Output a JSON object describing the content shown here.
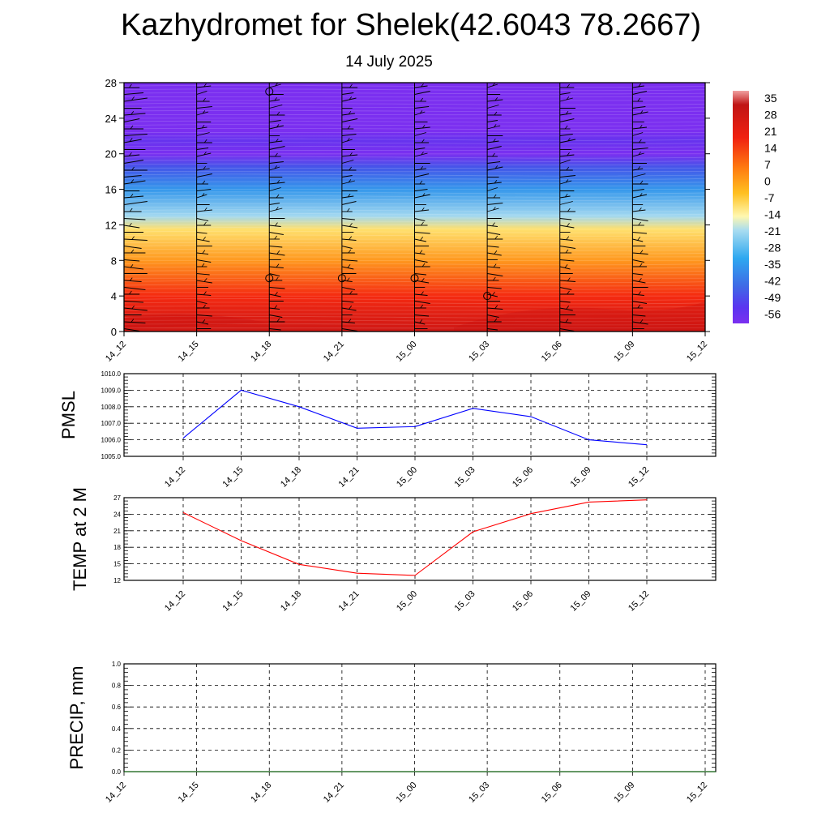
{
  "header": {
    "title": "Kazhydromet for Shelek(42.6043 78.2667)",
    "subtitle": "14 July 2025"
  },
  "colors": {
    "pmsl_line": "#0000ff",
    "temp_line": "#ff0000",
    "precip_line": "#006400"
  },
  "chart_data": [
    {
      "type": "heatmap",
      "name": "vertical-temperature-section",
      "x_ticks": [
        "14_12",
        "14_15",
        "14_18",
        "14_21",
        "15_00",
        "15_03",
        "15_06",
        "15_09",
        "15_12"
      ],
      "y_ticks": [
        "0",
        "4",
        "8",
        "12",
        "16",
        "20",
        "24",
        "28"
      ],
      "ylim": [
        0,
        28
      ],
      "colorbar": {
        "labels": [
          "35",
          "28",
          "21",
          "14",
          "7",
          "0",
          "-7",
          "-14",
          "-21",
          "-28",
          "-35",
          "-42",
          "-49",
          "-56"
        ],
        "range": [
          -60,
          38
        ]
      },
      "approx_temperature_profile": [
        {
          "level": 0,
          "value": 30
        },
        {
          "level": 2,
          "value": 26
        },
        {
          "level": 4,
          "value": 21
        },
        {
          "level": 8,
          "value": 8
        },
        {
          "level": 11.5,
          "value": -3
        },
        {
          "level": 13,
          "value": -16
        },
        {
          "level": 16,
          "value": -32
        },
        {
          "level": 18.5,
          "value": -46
        },
        {
          "level": 20,
          "value": -60
        },
        {
          "level": 21.5,
          "value": -55
        },
        {
          "level": 22.5,
          "value": -62
        },
        {
          "level": 28,
          "value": -62
        }
      ],
      "wind_barbs": "present at each time column",
      "calm_markers": [
        {
          "x": "14_18",
          "level": 27
        },
        {
          "x": "14_18",
          "level": 6
        },
        {
          "x": "14_21",
          "level": 6
        },
        {
          "x": "15_00",
          "level": 6
        },
        {
          "x": "15_03",
          "level": 4
        }
      ]
    },
    {
      "type": "line",
      "name": "pmsl",
      "ylabel": "PMSL",
      "x": [
        "14_12",
        "14_15",
        "14_18",
        "14_21",
        "15_00",
        "15_03",
        "15_06",
        "15_09",
        "15_12"
      ],
      "values": [
        1006.1,
        1009.0,
        1008.0,
        1006.7,
        1006.8,
        1007.9,
        1007.4,
        1006.0,
        1005.7
      ],
      "y_ticks": [
        "1005.0",
        "1006.0",
        "1007.0",
        "1008.0",
        "1009.0",
        "1010.0"
      ],
      "ylim": [
        1005,
        1010
      ],
      "grid": true
    },
    {
      "type": "line",
      "name": "temp-2m",
      "ylabel": "TEMP at 2 M",
      "x": [
        "14_12",
        "14_15",
        "14_18",
        "14_21",
        "15_00",
        "15_03",
        "15_06",
        "15_09",
        "15_12"
      ],
      "values": [
        24.3,
        19.2,
        14.9,
        13.3,
        12.9,
        20.8,
        24.1,
        26.2,
        26.6
      ],
      "y_ticks": [
        "12",
        "15",
        "18",
        "21",
        "24",
        "27"
      ],
      "ylim": [
        12,
        27
      ],
      "grid": true
    },
    {
      "type": "line",
      "name": "precip",
      "ylabel": "PRECIP, mm",
      "x": [
        "14_12",
        "14_15",
        "14_18",
        "14_21",
        "15_00",
        "15_03",
        "15_06",
        "15_09",
        "15_12"
      ],
      "values": [
        0,
        0,
        0,
        0,
        0,
        0,
        0,
        0,
        0
      ],
      "y_ticks": [
        "0.0",
        "0.2",
        "0.4",
        "0.6",
        "0.8",
        "1.0"
      ],
      "ylim": [
        0,
        1
      ],
      "grid": true
    }
  ]
}
